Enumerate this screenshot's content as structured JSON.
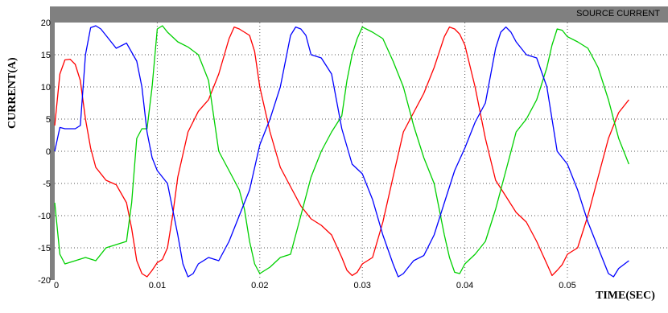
{
  "chart_data": {
    "type": "line",
    "title": "SOURCE CURRENT",
    "xlabel": "TIME(SEC)",
    "ylabel": "CURRENT(A)",
    "xlim": [
      0,
      0.056
    ],
    "ylim": [
      -20,
      20
    ],
    "x_ticks": [
      0,
      0.01,
      0.02,
      0.03,
      0.04,
      0.05
    ],
    "x_tick_labels": [
      "0",
      "0.01",
      "0.02",
      "0.03",
      "0.04",
      "0.05"
    ],
    "y_ticks": [
      -20,
      -15,
      -10,
      -5,
      0,
      5,
      10,
      15,
      20
    ],
    "y_tick_labels": [
      "-20",
      "-15",
      "-10",
      "-5",
      "0",
      "5",
      "10",
      "15",
      "20"
    ],
    "grid": true,
    "background": "#ffffff",
    "frame_color": "#808080",
    "series": [
      {
        "color": "#ff0000",
        "x": [
          0,
          0.0005,
          0.001,
          0.0015,
          0.002,
          0.0025,
          0.003,
          0.0035,
          0.004,
          0.005,
          0.006,
          0.007,
          0.0075,
          0.008,
          0.0085,
          0.009,
          0.0095,
          0.01,
          0.0105,
          0.011,
          0.0115,
          0.012,
          0.013,
          0.014,
          0.015,
          0.016,
          0.017,
          0.0175,
          0.018,
          0.0185,
          0.019,
          0.0195,
          0.02,
          0.021,
          0.022,
          0.023,
          0.024,
          0.025,
          0.026,
          0.027,
          0.028,
          0.0285,
          0.029,
          0.0295,
          0.03,
          0.031,
          0.032,
          0.033,
          0.034,
          0.035,
          0.036,
          0.037,
          0.038,
          0.0385,
          0.039,
          0.0395,
          0.04,
          0.041,
          0.042,
          0.043,
          0.044,
          0.045,
          0.046,
          0.047,
          0.048,
          0.0485,
          0.049,
          0.0495,
          0.05,
          0.051,
          0.052,
          0.053,
          0.054,
          0.055,
          0.056
        ],
        "y": [
          4,
          12,
          14.2,
          14.3,
          13.5,
          11,
          5,
          0.5,
          -2.5,
          -4.5,
          -5.2,
          -8,
          -12,
          -17,
          -19,
          -19.5,
          -18.5,
          -17.3,
          -16.8,
          -15,
          -10,
          -4,
          3,
          6.2,
          8,
          12,
          17.5,
          19.3,
          19,
          18.5,
          18,
          15.5,
          10,
          3,
          -2.5,
          -5.5,
          -8.5,
          -10.5,
          -11.5,
          -13,
          -16.5,
          -18.5,
          -19.3,
          -18.8,
          -17.5,
          -16.5,
          -11,
          -4,
          3,
          6,
          9,
          13,
          17.8,
          19.3,
          19,
          18.2,
          16.5,
          10,
          2,
          -4.5,
          -7,
          -9.5,
          -11,
          -14,
          -17.5,
          -19.3,
          -18.5,
          -17.6,
          -16,
          -15,
          -10,
          -4,
          2,
          6,
          8
        ]
      },
      {
        "color": "#00d000",
        "x": [
          0,
          0.0005,
          0.001,
          0.002,
          0.003,
          0.004,
          0.005,
          0.006,
          0.007,
          0.0075,
          0.008,
          0.0085,
          0.009,
          0.0095,
          0.01,
          0.0105,
          0.011,
          0.012,
          0.013,
          0.014,
          0.015,
          0.016,
          0.017,
          0.018,
          0.0185,
          0.019,
          0.0195,
          0.02,
          0.021,
          0.022,
          0.023,
          0.024,
          0.025,
          0.026,
          0.027,
          0.028,
          0.0285,
          0.029,
          0.0295,
          0.03,
          0.031,
          0.032,
          0.033,
          0.034,
          0.035,
          0.036,
          0.037,
          0.038,
          0.0385,
          0.039,
          0.0395,
          0.04,
          0.041,
          0.042,
          0.043,
          0.044,
          0.045,
          0.046,
          0.047,
          0.048,
          0.0485,
          0.049,
          0.0495,
          0.05,
          0.051,
          0.052,
          0.053,
          0.054,
          0.055,
          0.056
        ],
        "y": [
          -8,
          -16,
          -17.5,
          -17,
          -16.5,
          -17,
          -15,
          -14.5,
          -14,
          -8,
          2,
          3.5,
          3.5,
          10,
          19,
          19.5,
          18.5,
          17,
          16.2,
          15,
          11,
          0,
          -3,
          -6,
          -9,
          -14,
          -17.5,
          -19,
          -18,
          -16.5,
          -16,
          -10,
          -4,
          0,
          3,
          5.5,
          11,
          15,
          17.5,
          19.3,
          18.5,
          17.5,
          14,
          10,
          4,
          -1,
          -5,
          -13,
          -16.5,
          -18.8,
          -19,
          -17.5,
          -16,
          -14,
          -9,
          -3,
          3,
          5,
          8,
          13,
          16.5,
          19,
          18.8,
          17.8,
          17,
          16,
          13,
          8,
          2,
          -2
        ]
      },
      {
        "color": "#0000ff",
        "x": [
          0,
          0.0005,
          0.001,
          0.002,
          0.0025,
          0.003,
          0.0035,
          0.004,
          0.0045,
          0.005,
          0.006,
          0.007,
          0.008,
          0.0085,
          0.009,
          0.0095,
          0.01,
          0.011,
          0.012,
          0.0125,
          0.013,
          0.0135,
          0.014,
          0.015,
          0.016,
          0.017,
          0.018,
          0.019,
          0.02,
          0.021,
          0.022,
          0.023,
          0.0235,
          0.024,
          0.0245,
          0.025,
          0.026,
          0.027,
          0.028,
          0.029,
          0.03,
          0.031,
          0.032,
          0.033,
          0.0335,
          0.034,
          0.0345,
          0.035,
          0.036,
          0.037,
          0.038,
          0.039,
          0.04,
          0.041,
          0.042,
          0.043,
          0.0435,
          0.044,
          0.0445,
          0.045,
          0.046,
          0.047,
          0.048,
          0.049,
          0.05,
          0.051,
          0.052,
          0.053,
          0.0535,
          0.054,
          0.0545,
          0.055,
          0.056
        ],
        "y": [
          0,
          3.7,
          3.5,
          3.5,
          4,
          15,
          19.2,
          19.5,
          19,
          18,
          16,
          16.8,
          14,
          10,
          3,
          -1,
          -3,
          -5,
          -13,
          -17.5,
          -19.5,
          -19,
          -17.5,
          -16.5,
          -17,
          -14,
          -10,
          -6,
          1,
          5,
          10,
          18,
          19.3,
          19,
          18,
          15,
          14.5,
          12,
          3.5,
          -2,
          -3.5,
          -7.5,
          -13,
          -17.5,
          -19.5,
          -19,
          -18,
          -17,
          -16.2,
          -13,
          -8,
          -3,
          0.5,
          4.5,
          7.5,
          16,
          18.5,
          19.3,
          18.5,
          17,
          15,
          14.5,
          10,
          0,
          -2,
          -6,
          -11,
          -15,
          -17,
          -19,
          -19.5,
          -18.2,
          -17
        ]
      }
    ]
  }
}
